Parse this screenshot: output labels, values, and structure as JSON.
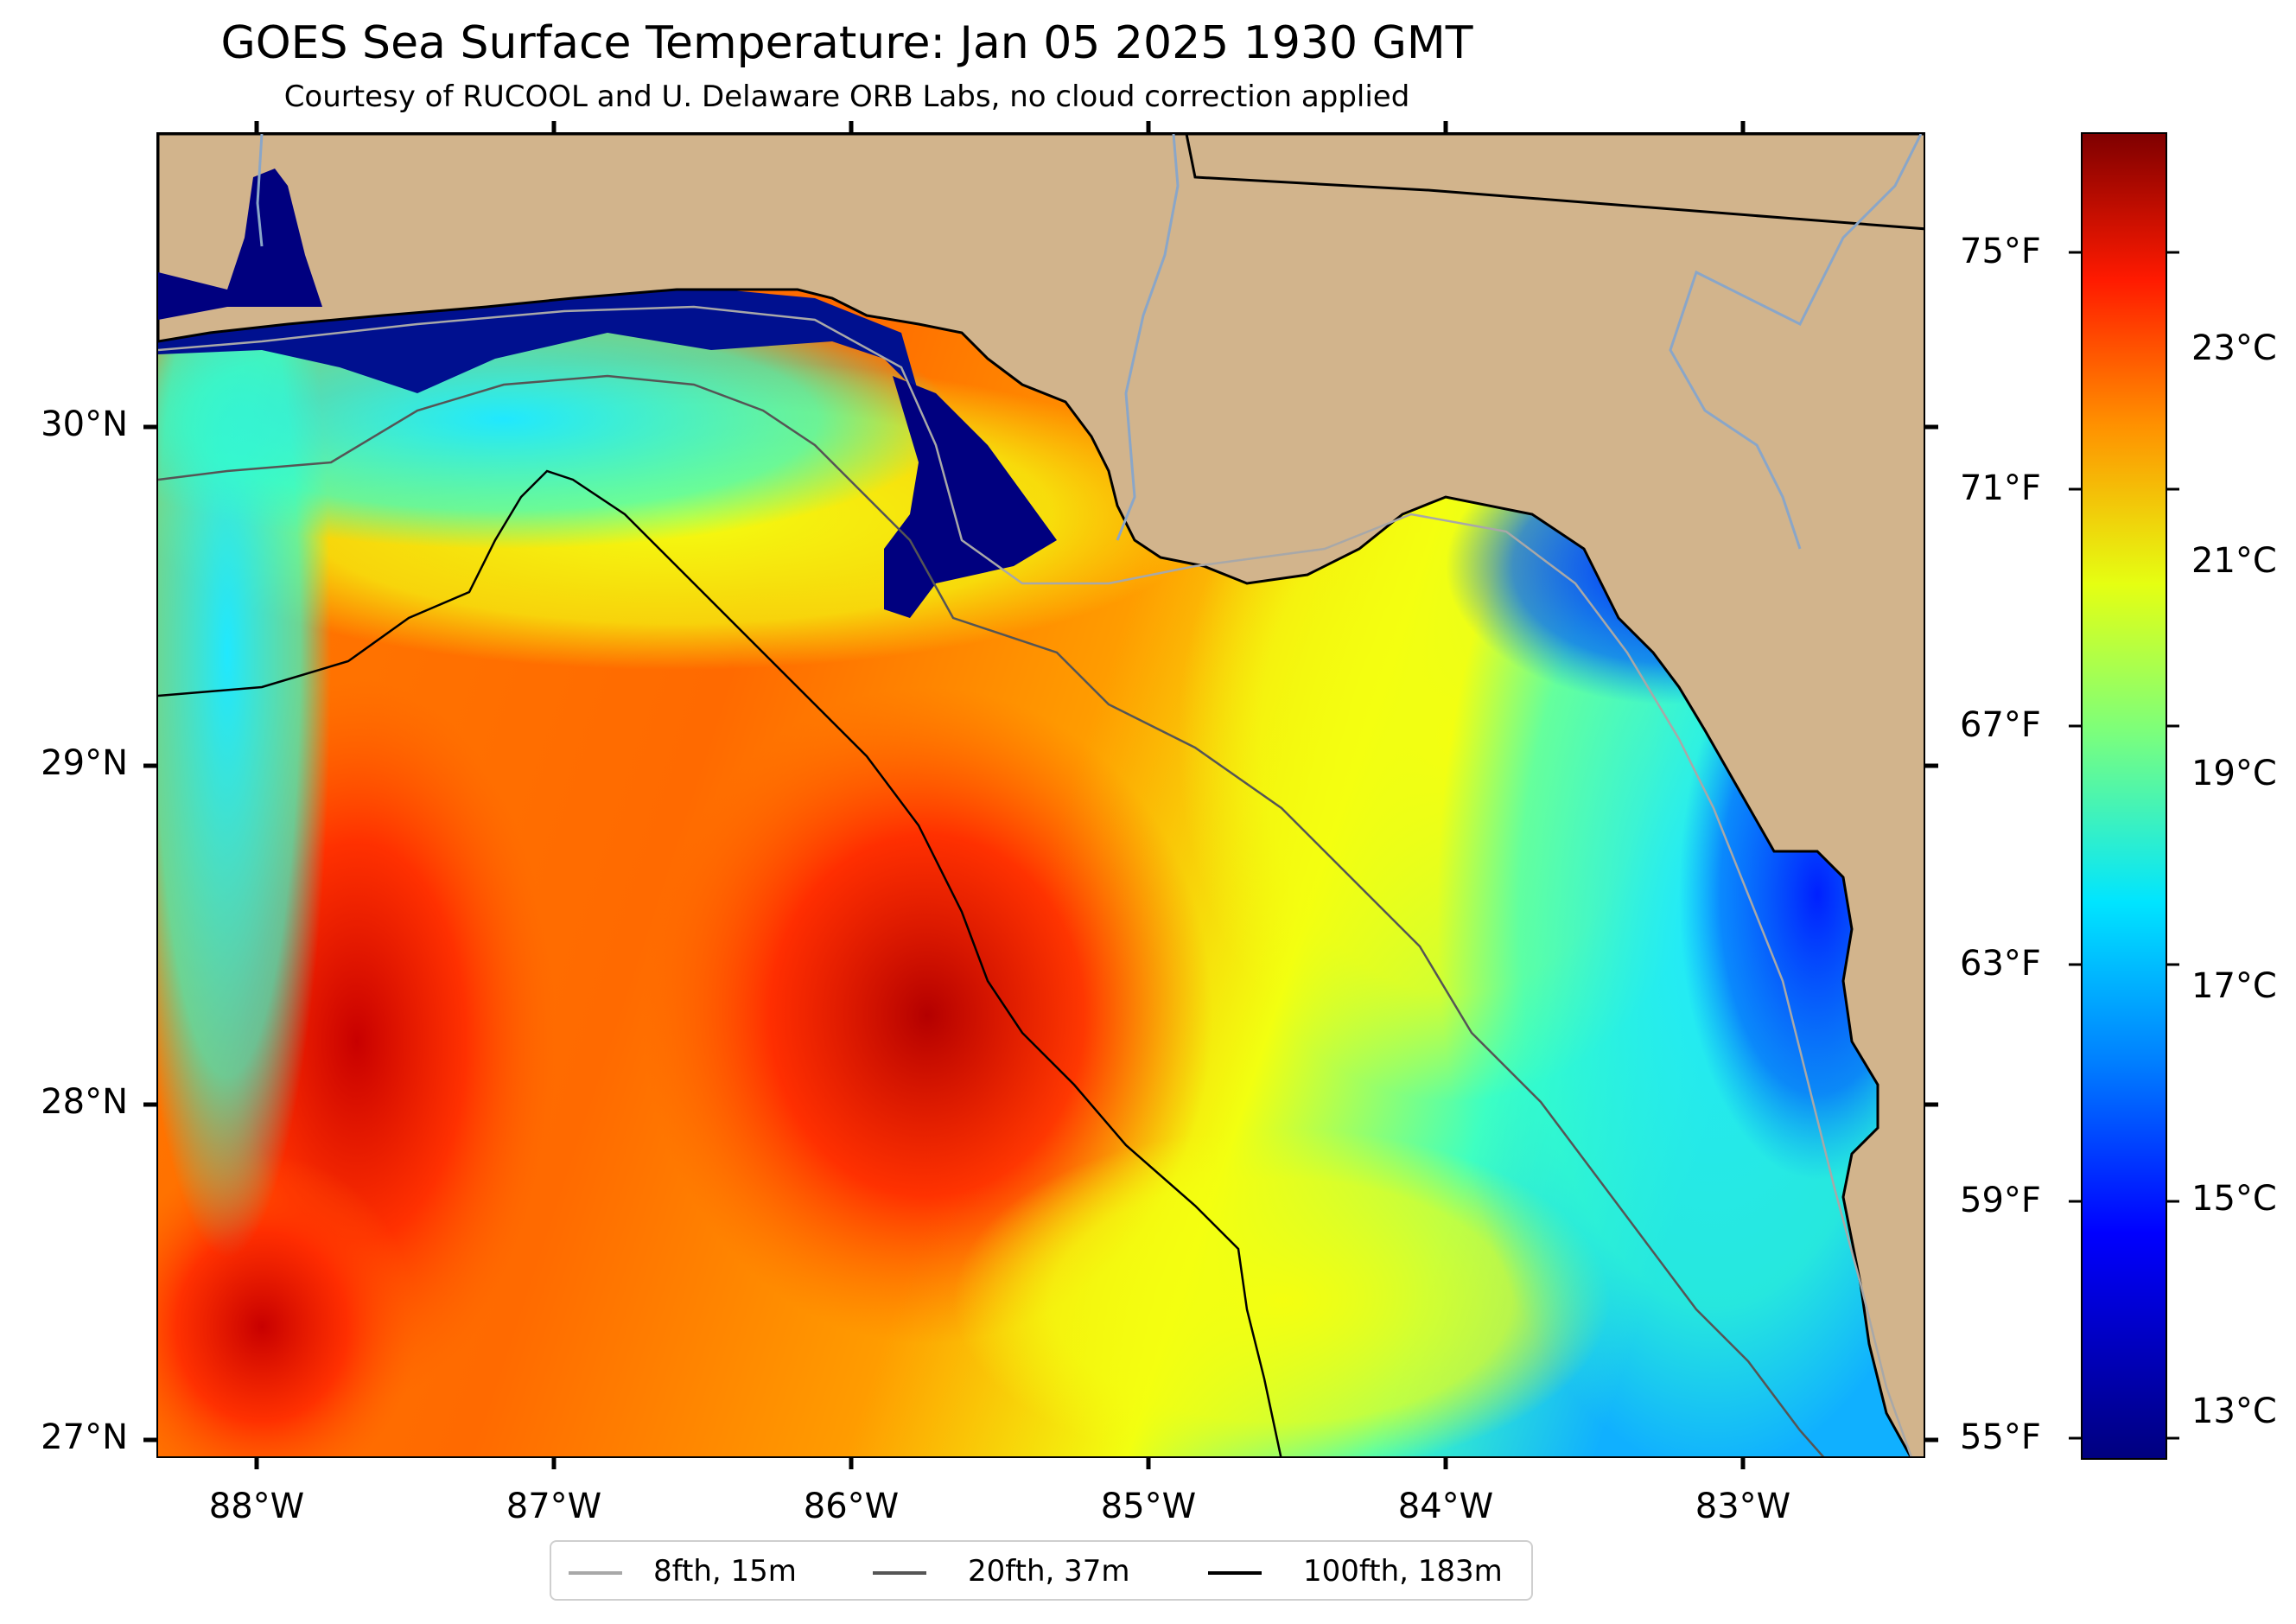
{
  "title": "GOES Sea Surface Temperature: Jan 05 2025 1930 GMT",
  "subtitle": "Courtesy of RUCOOL and U. Delaware ORB Labs, no cloud correction applied",
  "lat_labels": [
    "30°N",
    "29°N",
    "28°N",
    "27°N"
  ],
  "lon_labels": [
    "88°W",
    "87°W",
    "86°W",
    "85°W",
    "84°W",
    "83°W"
  ],
  "fahrenheit_labels": [
    "75°F",
    "71°F",
    "67°F",
    "63°F",
    "59°F",
    "55°F"
  ],
  "celsius_labels": [
    "23°C",
    "21°C",
    "19°C",
    "17°C",
    "15°C",
    "13°C"
  ],
  "colormap": [
    "#00007f",
    "#0000ff",
    "#0080ff",
    "#00e5ff",
    "#7dff7a",
    "#e5ff12",
    "#ff9100",
    "#ff1a00",
    "#7f0000"
  ],
  "land_color": "#d2b48c",
  "legend": [
    {
      "label": "8fth, 15m",
      "color": "#a8a8a8"
    },
    {
      "label": "20fth, 37m",
      "color": "#555555"
    },
    {
      "label": "100fth, 183m",
      "color": "#000000"
    }
  ]
}
